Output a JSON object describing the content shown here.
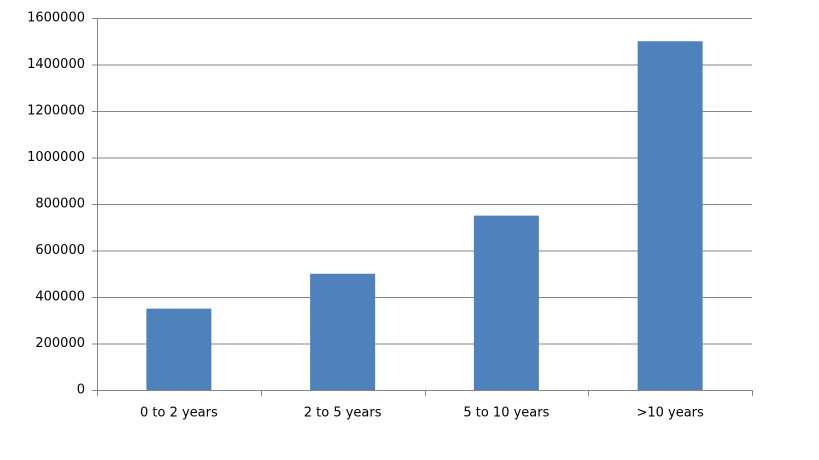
{
  "chart_data": {
    "type": "bar",
    "categories": [
      "0 to 2 years",
      "2 to 5 years",
      "5 to 10 years",
      ">10 years"
    ],
    "values": [
      350000,
      500000,
      750000,
      1500000
    ],
    "color": "#4f81bd",
    "ylim": [
      0,
      1600000
    ],
    "yticks": [
      0,
      200000,
      400000,
      600000,
      800000,
      1000000,
      1200000,
      1400000,
      1600000
    ],
    "grid": true
  }
}
